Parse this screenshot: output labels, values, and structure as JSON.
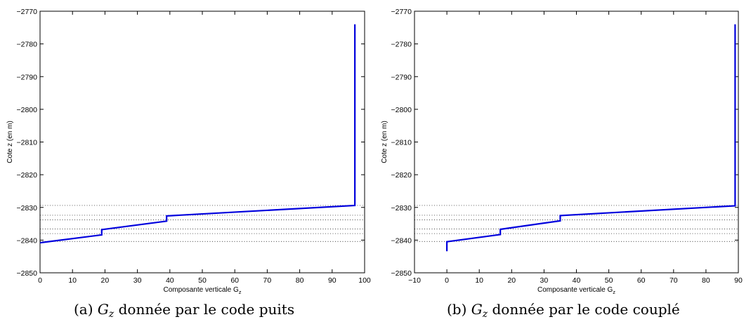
{
  "chart_data": [
    {
      "type": "line",
      "caption_prefix": "(a)",
      "caption_symbol": "G",
      "caption_sub": "z",
      "caption_text": "donnée par le code puits",
      "xlabel": "Composante verticale G",
      "xlabel_sub": "z",
      "ylabel": "Cote z (en m)",
      "xlim": [
        0,
        100
      ],
      "ylim": [
        -2850,
        -2770
      ],
      "xticks": [
        0,
        10,
        20,
        30,
        40,
        50,
        60,
        70,
        80,
        90,
        100
      ],
      "yticks": [
        -2850,
        -2840,
        -2830,
        -2820,
        -2810,
        -2800,
        -2790,
        -2780,
        -2770
      ],
      "grid": false,
      "reference_lines_z": [
        -2829.4,
        -2832.4,
        -2833.8,
        -2836.6,
        -2838.0,
        -2840.4
      ],
      "series": [
        {
          "color": "#0000dd",
          "points": [
            [
              0,
              -2840.8
            ],
            [
              19,
              -2838.4
            ],
            [
              19,
              -2836.8
            ],
            [
              39,
              -2834.2
            ],
            [
              39,
              -2832.6
            ],
            [
              97,
              -2829.4
            ],
            [
              97,
              -2774
            ]
          ]
        }
      ]
    },
    {
      "type": "line",
      "caption_prefix": "(b)",
      "caption_symbol": "G",
      "caption_sub": "z",
      "caption_text": "donnée par le code couplé",
      "xlabel": "Composante verticale G",
      "xlabel_sub": "z",
      "ylabel": "Cote z (en m)",
      "xlim": [
        -10,
        90
      ],
      "ylim": [
        -2850,
        -2770
      ],
      "xticks": [
        -10,
        0,
        10,
        20,
        30,
        40,
        50,
        60,
        70,
        80,
        90
      ],
      "yticks": [
        -2850,
        -2840,
        -2830,
        -2820,
        -2810,
        -2800,
        -2790,
        -2780,
        -2770
      ],
      "grid": false,
      "reference_lines_z": [
        -2829.4,
        -2832.4,
        -2833.8,
        -2836.6,
        -2838.0,
        -2840.4
      ],
      "series": [
        {
          "color": "#0000dd",
          "points": [
            [
              0,
              -2843.4
            ],
            [
              0,
              -2840.5
            ],
            [
              16.5,
              -2838.3
            ],
            [
              16.5,
              -2836.7
            ],
            [
              35,
              -2834.1
            ],
            [
              35,
              -2832.5
            ],
            [
              89,
              -2829.5
            ],
            [
              89,
              -2774
            ]
          ]
        }
      ]
    }
  ]
}
